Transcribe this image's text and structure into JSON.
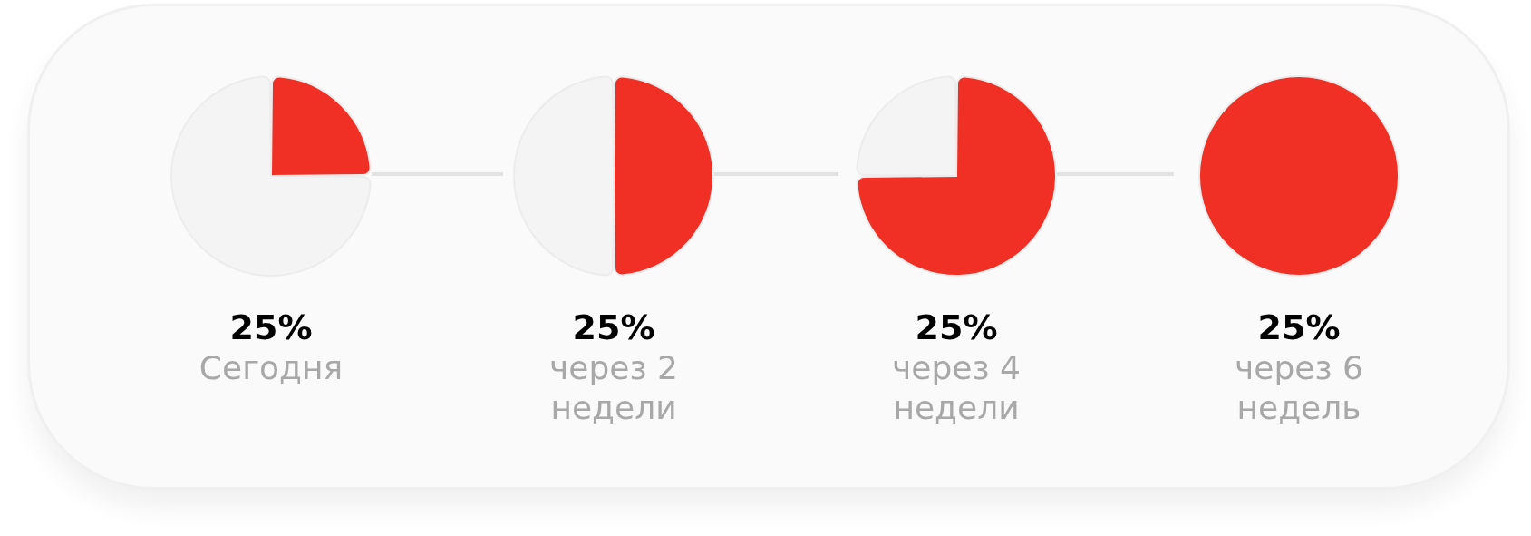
{
  "chart_data": [
    {
      "type": "pie",
      "title": "25%",
      "subtitle": "Сегодня",
      "categories": [
        null,
        null
      ],
      "values": [
        25,
        75
      ],
      "colors": [
        "#f03024",
        "#f4f4f4"
      ]
    },
    {
      "type": "pie",
      "title": "25%",
      "subtitle": "через 2 недели",
      "categories": [
        null,
        null
      ],
      "values": [
        50,
        50
      ],
      "colors": [
        "#f03024",
        "#f4f4f4"
      ]
    },
    {
      "type": "pie",
      "title": "25%",
      "subtitle": "через 4 недели",
      "categories": [
        null,
        null
      ],
      "values": [
        75,
        25
      ],
      "colors": [
        "#f03024",
        "#f4f4f4"
      ]
    },
    {
      "type": "pie",
      "title": "25%",
      "subtitle": "через 6 недель",
      "categories": [
        null
      ],
      "values": [
        100
      ],
      "colors": [
        "#f03024"
      ]
    }
  ]
}
